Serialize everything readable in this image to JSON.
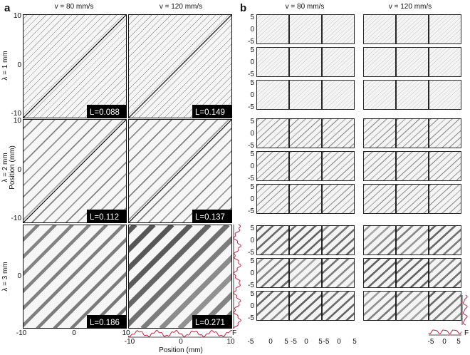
{
  "panel_a": {
    "letter": "a",
    "col_headers": [
      "v = 80 mm/s",
      "v = 120 mm/s"
    ],
    "row_labels": [
      "λ = 1 mm",
      "λ = 2 mm",
      "λ = 3 mm"
    ],
    "y_axis_label": "Position (mm)",
    "x_axis_label": "Position (mm)",
    "y_ticks": [
      "10",
      "0",
      "-10"
    ],
    "x_ticks": [
      "-10",
      "0",
      "10"
    ],
    "l_values": [
      [
        "L=0.088",
        "L=0.149"
      ],
      [
        "L=0.112",
        "L=0.137"
      ],
      [
        "L=0.186",
        "L=0.271"
      ]
    ],
    "profile_label": "F"
  },
  "panel_b": {
    "letter": "b",
    "col_headers": [
      "v = 80 mm/s",
      "v = 120 mm/s"
    ],
    "y_ticks": [
      "5",
      "0",
      "-5"
    ],
    "x_ticks": [
      "-5",
      "0",
      "5"
    ],
    "profile_label": "F"
  },
  "colors": {
    "profile": "#d02040",
    "ink": "#111111",
    "label_bg": "#000000"
  }
}
